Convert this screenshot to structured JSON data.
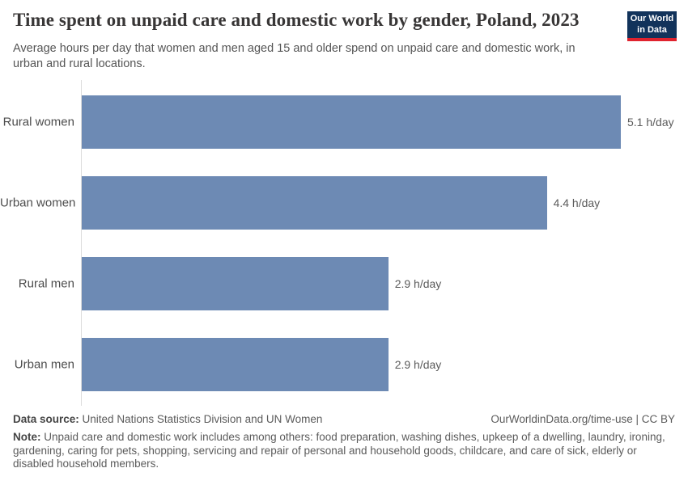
{
  "header": {
    "title": "Time spent on unpaid care and domestic work by gender, Poland, 2023",
    "subtitle": "Average hours per day that women and men aged 15 and older spend on unpaid care and domestic work, in urban and rural locations.",
    "logo_line1": "Our World",
    "logo_line2": "in Data"
  },
  "chart_data": {
    "type": "bar",
    "orientation": "horizontal",
    "title": "Time spent on unpaid care and domestic work by gender, Poland, 2023",
    "categories": [
      "Rural women",
      "Urban women",
      "Rural men",
      "Urban men"
    ],
    "values": [
      5.1,
      4.4,
      2.9,
      2.9
    ],
    "value_labels": [
      "5.1 h/day",
      "4.4 h/day",
      "2.9 h/day",
      "2.9 h/day"
    ],
    "unit": "h/day",
    "xlim": [
      0,
      5.1
    ],
    "grid": false,
    "legend": "none"
  },
  "colors": {
    "bar": "#6d8ab4",
    "logo_bg": "#12335b",
    "logo_red": "#e0232e"
  },
  "footer": {
    "datasource_label": "Data source:",
    "datasource": "United Nations Statistics Division and UN Women",
    "attribution": "OurWorldinData.org/time-use | CC BY",
    "note_label": "Note:",
    "note": "Unpaid care and domestic work includes among others: food preparation, washing dishes, upkeep of a dwelling, laundry, ironing, gardening, caring for pets, shopping, servicing and repair of personal and household goods, childcare, and care of sick, elderly or disabled household members."
  }
}
